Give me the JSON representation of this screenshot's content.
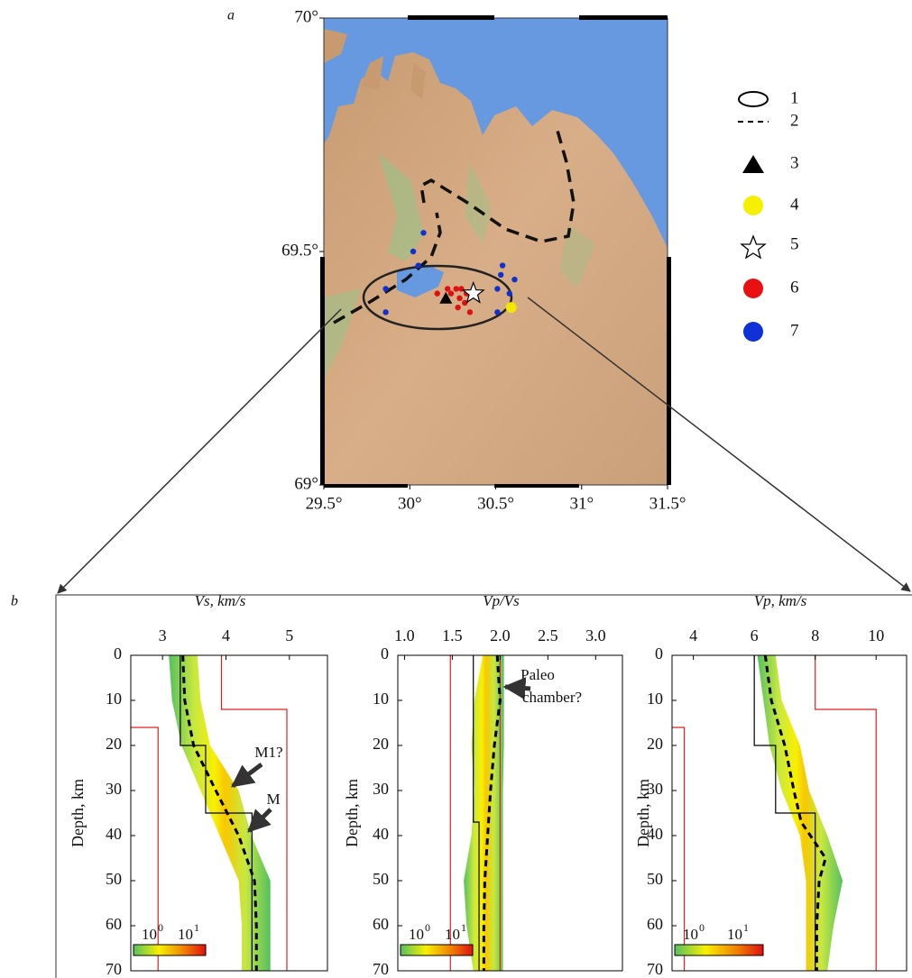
{
  "panel_labels": [
    "a",
    "b"
  ],
  "chart_data": [
    {
      "type": "map",
      "xlim": [
        29.5,
        31.5
      ],
      "ylim": [
        69,
        70
      ],
      "xticks": [
        {
          "value": 29.5,
          "label": "29.5°"
        },
        {
          "value": 30,
          "label": "30°"
        },
        {
          "value": 30.5,
          "label": "30.5°"
        },
        {
          "value": 31,
          "label": "31°"
        },
        {
          "value": 31.5,
          "label": "31.5°"
        }
      ],
      "yticks": [
        {
          "value": 69,
          "label": "69°"
        },
        {
          "value": 69.5,
          "label": "69.5°"
        },
        {
          "value": 70,
          "label": "70°"
        }
      ],
      "legend": [
        "1",
        "2",
        "3",
        "4",
        "5",
        "6",
        "7"
      ],
      "series": [
        {
          "marker": "circle",
          "color": "#e01010",
          "x": [
            30.22,
            30.27,
            30.29,
            30.32,
            30.24,
            30.3,
            30.28,
            30.33,
            30.16,
            30.35
          ],
          "y": [
            69.42,
            69.42,
            69.4,
            69.39,
            69.41,
            69.42,
            69.38,
            69.41,
            69.41,
            69.37
          ]
        },
        {
          "marker": "circle",
          "color": "#1030d0",
          "x": [
            30.08,
            30.02,
            30.05,
            29.86,
            29.86,
            30.54,
            30.53,
            30.61,
            30.51,
            30.51,
            30.58
          ],
          "y": [
            69.54,
            69.5,
            69.47,
            69.42,
            69.37,
            69.47,
            69.45,
            69.44,
            69.42,
            69.37,
            69.41
          ]
        },
        {
          "marker": "triangle",
          "color": "#000000",
          "x": [
            30.21
          ],
          "y": [
            69.4
          ]
        },
        {
          "marker": "big-circle",
          "color": "#f5e600",
          "x": [
            30.59
          ],
          "y": [
            69.38
          ]
        },
        {
          "marker": "star",
          "color": "#ffffff",
          "x": [
            30.37
          ],
          "y": [
            69.41
          ]
        }
      ]
    },
    {
      "type": "profile",
      "title": "Vs, km/s",
      "y_label": "Depth, km",
      "xlim": [
        2.5,
        5.6
      ],
      "ylim": [
        0,
        70
      ],
      "y_inverted": true,
      "xticks": [
        3,
        4,
        5
      ],
      "yticks": [
        0,
        10,
        20,
        30,
        40,
        50,
        60,
        70
      ],
      "band": {
        "y": [
          0,
          10,
          20,
          30,
          40,
          50,
          60,
          70
        ],
        "low": [
          3.1,
          3.15,
          3.3,
          3.6,
          3.9,
          4.2,
          4.25,
          4.25
        ],
        "high": [
          3.55,
          3.6,
          3.75,
          4.2,
          4.4,
          4.7,
          4.7,
          4.7
        ]
      },
      "series": [
        {
          "style": "solid",
          "color": "#e02020",
          "x": [
            2.5,
            2.93,
            2.93
          ],
          "y": [
            16,
            16,
            70
          ]
        },
        {
          "style": "solid",
          "color": "#e02020",
          "x": [
            3.93,
            3.93,
            4.96,
            4.96
          ],
          "y": [
            0,
            12,
            12,
            70
          ]
        },
        {
          "style": "solid",
          "color": "#000000",
          "x": [
            3.28,
            3.28,
            3.68,
            3.68,
            4.41,
            4.41
          ],
          "y": [
            0,
            20,
            20,
            35,
            35,
            70
          ]
        },
        {
          "style": "dashed",
          "color": "#000000",
          "x": [
            3.32,
            3.35,
            3.49,
            3.84,
            4.2,
            4.45,
            4.48,
            4.48
          ],
          "y": [
            0,
            10,
            20,
            30,
            40,
            50,
            60,
            70
          ]
        }
      ],
      "annotations": [
        "M1?",
        "M"
      ],
      "colorbar_labels": [
        {
          "base": "10",
          "exponent": "0"
        },
        {
          "base": "10",
          "exponent": "1"
        }
      ]
    },
    {
      "type": "profile",
      "title": "Vp/Vs",
      "y_label": "Depth, km",
      "xlim": [
        0.93,
        3.28
      ],
      "ylim": [
        0,
        70
      ],
      "y_inverted": true,
      "xticks": [
        {
          "value": 1,
          "label": "1.0"
        },
        1.5,
        {
          "value": 2,
          "label": "2.0"
        },
        2.5,
        {
          "value": 3,
          "label": "3.0"
        }
      ],
      "yticks": [
        0,
        10,
        20,
        30,
        40,
        50,
        60,
        70
      ],
      "band": {
        "y": [
          0,
          10,
          20,
          30,
          40,
          50,
          60,
          70
        ],
        "low": [
          1.82,
          1.73,
          1.7,
          1.73,
          1.7,
          1.62,
          1.65,
          1.72
        ],
        "high": [
          2.04,
          2.04,
          2.04,
          2.03,
          2.03,
          2.03,
          2.03,
          2.03
        ]
      },
      "series": [
        {
          "style": "solid",
          "color": "#e02020",
          "x": [
            1.48,
            1.48
          ],
          "y": [
            0,
            70
          ]
        },
        {
          "style": "solid",
          "color": "#e02020",
          "x": [
            2.0,
            2.0
          ],
          "y": [
            0,
            70
          ]
        },
        {
          "style": "solid",
          "color": "#000000",
          "x": [
            1.72,
            1.72,
            1.78,
            1.78
          ],
          "y": [
            0,
            37,
            37,
            70
          ]
        },
        {
          "style": "dashed",
          "color": "#000000",
          "x": [
            1.97,
            2.0,
            1.94,
            1.9,
            1.87,
            1.84,
            1.83,
            1.83
          ],
          "y": [
            0,
            10,
            20,
            30,
            40,
            50,
            60,
            70
          ]
        }
      ],
      "annotations": [
        "Paleo",
        "chamber?"
      ],
      "colorbar_labels": [
        {
          "base": "10",
          "exponent": "0"
        },
        {
          "base": "10",
          "exponent": "1"
        }
      ]
    },
    {
      "type": "profile",
      "title": "Vp, km/s",
      "y_label": "Depth, km",
      "xlim": [
        3.3,
        11.0
      ],
      "ylim": [
        0,
        70
      ],
      "y_inverted": true,
      "xticks": [
        4,
        6,
        8,
        10
      ],
      "yticks": [
        0,
        10,
        20,
        30,
        40,
        50,
        60,
        70
      ],
      "band": {
        "y": [
          0,
          10,
          20,
          30,
          40,
          50,
          60,
          70
        ],
        "low": [
          6.1,
          6.3,
          6.5,
          6.9,
          7.5,
          7.7,
          7.7,
          7.7
        ],
        "high": [
          6.7,
          6.9,
          7.5,
          7.8,
          8.4,
          8.9,
          8.6,
          8.4
        ]
      },
      "series": [
        {
          "style": "solid",
          "color": "#e02020",
          "x": [
            3.3,
            3.7,
            3.7
          ],
          "y": [
            16,
            16,
            70
          ]
        },
        {
          "style": "solid",
          "color": "#e02020",
          "x": [
            8,
            8,
            10,
            10
          ],
          "y": [
            0,
            12,
            12,
            70
          ]
        },
        {
          "style": "solid",
          "color": "#000000",
          "x": [
            6,
            6,
            6.7,
            6.7,
            8,
            8
          ],
          "y": [
            0,
            20,
            20,
            35,
            35,
            70
          ]
        },
        {
          "style": "dashed",
          "color": "#000000",
          "x": [
            6.36,
            6.56,
            7.0,
            7.3,
            7.54,
            8.34,
            8.13,
            8.05,
            8.05
          ],
          "y": [
            0,
            10,
            20,
            30,
            37,
            45,
            50,
            60,
            70
          ]
        }
      ],
      "annotations": [],
      "colorbar_labels": [
        {
          "base": "10",
          "exponent": "0"
        },
        {
          "base": "10",
          "exponent": "1"
        }
      ]
    }
  ]
}
